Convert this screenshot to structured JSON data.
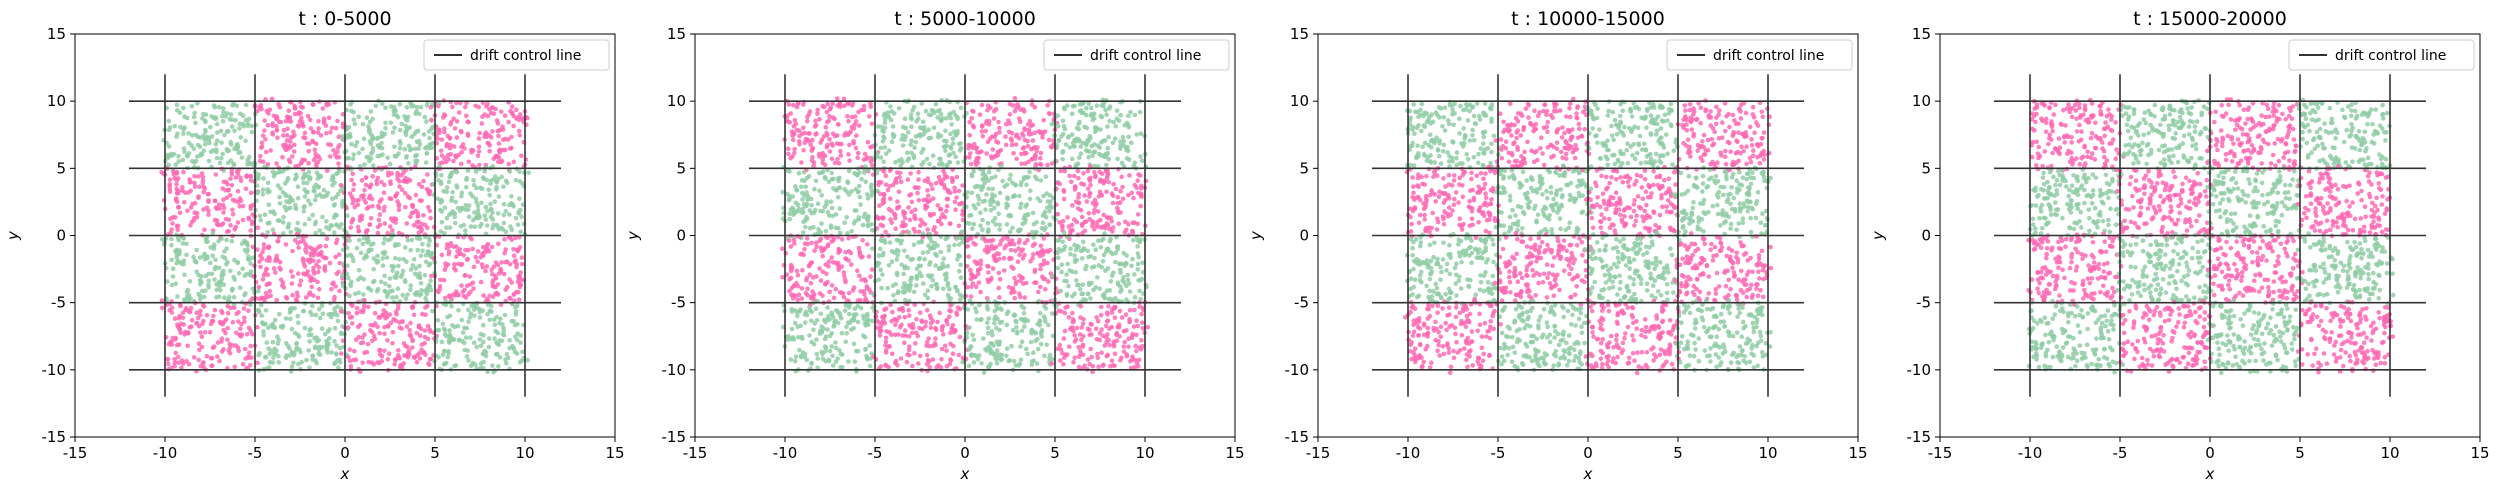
{
  "colors": {
    "class_a": "#ff69b4",
    "class_b": "#8fcca4",
    "control_line": "#333333"
  },
  "chart_data": [
    {
      "type": "scatter",
      "title": "t : 0-5000",
      "xlabel": "x",
      "ylabel": "y",
      "xlim": [
        -15,
        15
      ],
      "ylim": [
        -15,
        15
      ],
      "xticks": [
        -15,
        -10,
        -5,
        0,
        5,
        10,
        15
      ],
      "yticks": [
        -15,
        -10,
        -5,
        0,
        5,
        10,
        15
      ],
      "grid": false,
      "legend": {
        "placement": "top-right",
        "entries": [
          "drift control line"
        ]
      },
      "control_lines": {
        "positions": [
          -10,
          -5,
          0,
          5,
          10
        ],
        "extent": [
          -12,
          12
        ]
      },
      "checkerboard": {
        "cell_size": 5,
        "range": [
          -10,
          10
        ],
        "top_left_class": "class_b"
      },
      "points_per_cell": 170,
      "seed": 11
    },
    {
      "type": "scatter",
      "title": "t : 5000-10000",
      "xlabel": "x",
      "ylabel": "y",
      "xlim": [
        -15,
        15
      ],
      "ylim": [
        -15,
        15
      ],
      "xticks": [
        -15,
        -10,
        -5,
        0,
        5,
        10,
        15
      ],
      "yticks": [
        -15,
        -10,
        -5,
        0,
        5,
        10,
        15
      ],
      "grid": false,
      "legend": {
        "placement": "top-right",
        "entries": [
          "drift control line"
        ]
      },
      "control_lines": {
        "positions": [
          -10,
          -5,
          0,
          5,
          10
        ],
        "extent": [
          -12,
          12
        ]
      },
      "checkerboard": {
        "cell_size": 5,
        "range": [
          -10,
          10
        ],
        "top_left_class": "class_a"
      },
      "points_per_cell": 170,
      "seed": 23
    },
    {
      "type": "scatter",
      "title": "t : 10000-15000",
      "xlabel": "x",
      "ylabel": "y",
      "xlim": [
        -15,
        15
      ],
      "ylim": [
        -15,
        15
      ],
      "xticks": [
        -15,
        -10,
        -5,
        0,
        5,
        10,
        15
      ],
      "yticks": [
        -15,
        -10,
        -5,
        0,
        5,
        10,
        15
      ],
      "grid": false,
      "legend": {
        "placement": "top-right",
        "entries": [
          "drift control line"
        ]
      },
      "control_lines": {
        "positions": [
          -10,
          -5,
          0,
          5,
          10
        ],
        "extent": [
          -12,
          12
        ]
      },
      "checkerboard": {
        "cell_size": 5,
        "range": [
          -10,
          10
        ],
        "top_left_class": "class_b"
      },
      "points_per_cell": 170,
      "seed": 37
    },
    {
      "type": "scatter",
      "title": "t : 15000-20000",
      "xlabel": "x",
      "ylabel": "y",
      "xlim": [
        -15,
        15
      ],
      "ylim": [
        -15,
        15
      ],
      "xticks": [
        -15,
        -10,
        -5,
        0,
        5,
        10,
        15
      ],
      "yticks": [
        -15,
        -10,
        -5,
        0,
        5,
        10,
        15
      ],
      "grid": false,
      "legend": {
        "placement": "top-right",
        "entries": [
          "drift control line"
        ]
      },
      "control_lines": {
        "positions": [
          -10,
          -5,
          0,
          5,
          10
        ],
        "extent": [
          -12,
          12
        ]
      },
      "checkerboard": {
        "cell_size": 5,
        "range": [
          -10,
          10
        ],
        "top_left_class": "class_a"
      },
      "points_per_cell": 170,
      "seed": 53
    }
  ]
}
